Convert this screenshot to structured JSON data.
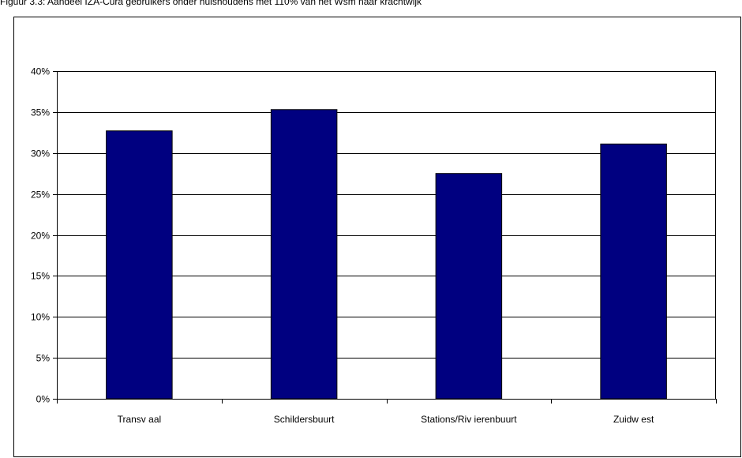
{
  "chart_data": {
    "type": "bar",
    "title": "Figuur 3.3: Aandeel IZA-Cura gebruikers onder huishoudens met 110% van het Wsm naar krachtwijk",
    "xlabel": "",
    "ylabel": "",
    "categories": [
      "Transvaal",
      "Schildersbuurt",
      "Stations/Rivierenbuurt",
      "Zuidwest"
    ],
    "category_labels": [
      "Transv aal",
      "Schildersbuurt",
      "Stations/Riv ierenbuurt",
      "Zuidw est"
    ],
    "values": [
      32.7,
      35.3,
      27.5,
      31.1
    ],
    "ylim": [
      0,
      40
    ],
    "yticks": [
      0,
      5,
      10,
      15,
      20,
      25,
      30,
      35,
      40
    ],
    "ytick_labels": [
      "0%",
      "5%",
      "10%",
      "15%",
      "20%",
      "25%",
      "30%",
      "35%",
      "40%"
    ],
    "grid": true,
    "legend": "none",
    "colors": {
      "bar": "#000080",
      "grid": "#000000",
      "frame": "#000000"
    }
  }
}
